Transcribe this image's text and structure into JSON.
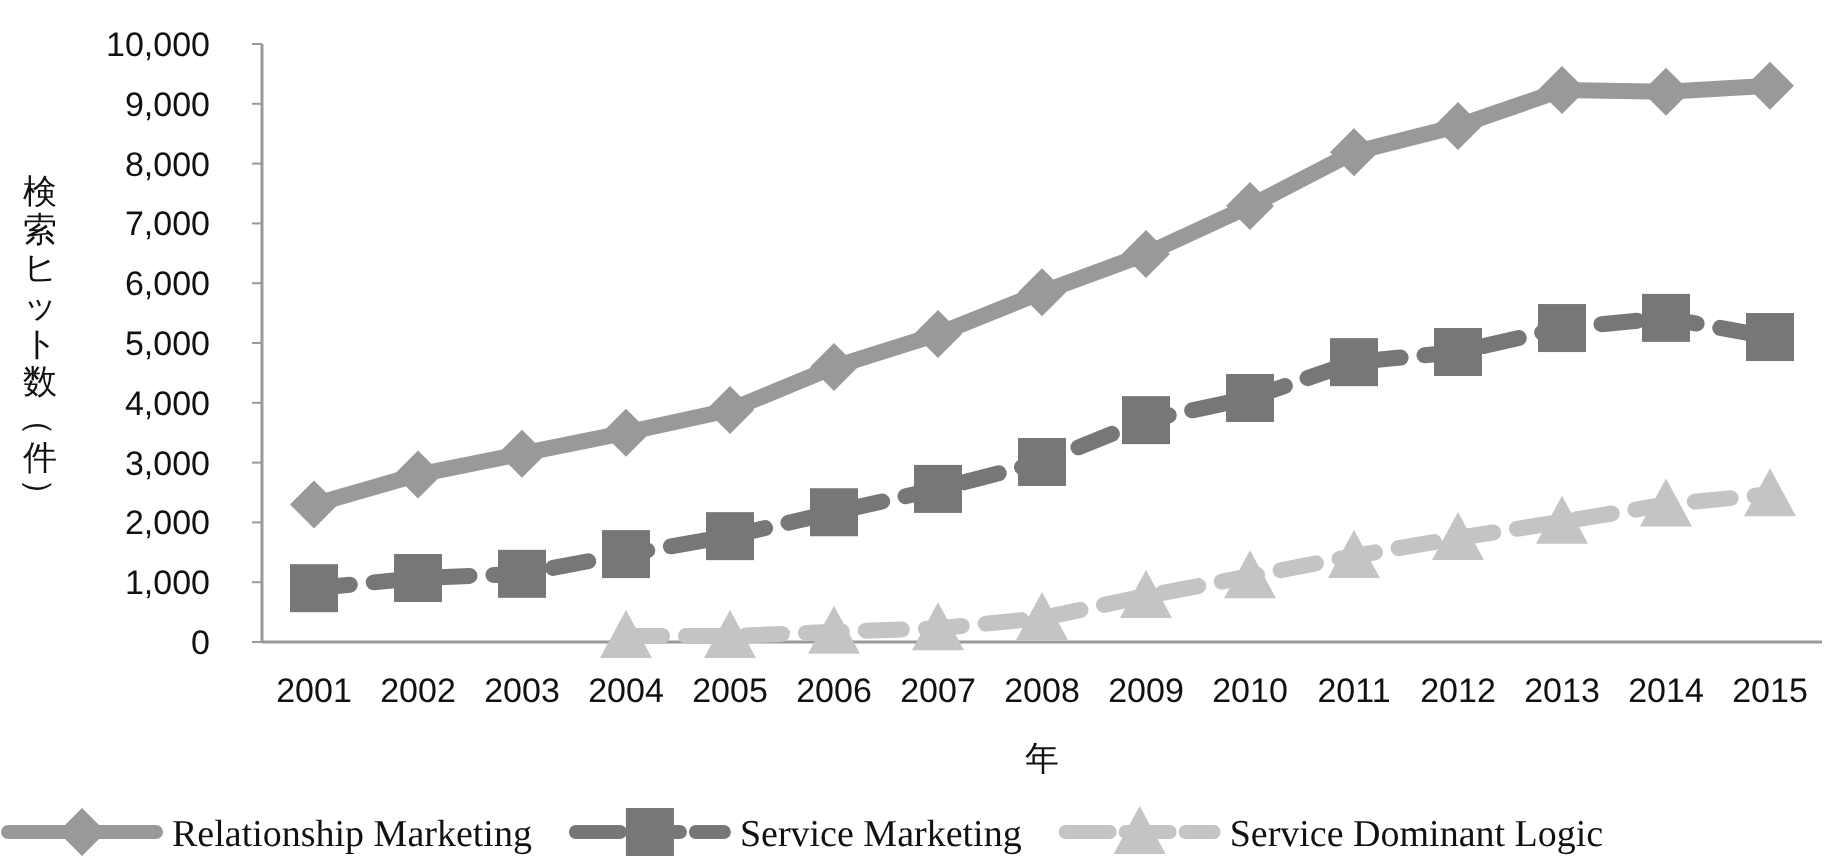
{
  "chart_data": {
    "type": "line",
    "xlabel": "年",
    "ylabel": "検索ヒット数（件）",
    "categories": [
      "2001",
      "2002",
      "2003",
      "2004",
      "2005",
      "2006",
      "2007",
      "2008",
      "2009",
      "2010",
      "2011",
      "2012",
      "2013",
      "2014",
      "2015"
    ],
    "ylim": [
      0,
      10000
    ],
    "yticks": [
      {
        "value": 0,
        "label": "0"
      },
      {
        "value": 1000,
        "label": "1,000"
      },
      {
        "value": 2000,
        "label": "2,000"
      },
      {
        "value": 3000,
        "label": "3,000"
      },
      {
        "value": 4000,
        "label": "4,000"
      },
      {
        "value": 5000,
        "label": "5,000"
      },
      {
        "value": 6000,
        "label": "6,000"
      },
      {
        "value": 7000,
        "label": "7,000"
      },
      {
        "value": 8000,
        "label": "8,000"
      },
      {
        "value": 9000,
        "label": "9,000"
      },
      {
        "value": 10000,
        "label": "10,000"
      }
    ],
    "grid": false,
    "legend": "bottom",
    "series": [
      {
        "name": "Relationship Marketing",
        "color": "#999999",
        "marker": "diamond",
        "line_style": "solid",
        "values": [
          2300,
          2800,
          3150,
          3500,
          3880,
          4600,
          5150,
          5850,
          6490,
          7290,
          8190,
          8630,
          9230,
          9200,
          9300
        ]
      },
      {
        "name": "Service Marketing",
        "color": "#777777",
        "marker": "square",
        "line_style": "dashed",
        "values": [
          900,
          1070,
          1140,
          1470,
          1770,
          2170,
          2560,
          3010,
          3710,
          4080,
          4680,
          4850,
          5250,
          5420,
          5100
        ]
      },
      {
        "name": "Service Dominant Logic",
        "color": "#c4c4c4",
        "marker": "triangle",
        "line_style": "dashed",
        "values": [
          null,
          null,
          null,
          100,
          100,
          170,
          230,
          400,
          770,
          1100,
          1440,
          1740,
          2010,
          2300,
          2470
        ]
      }
    ]
  }
}
